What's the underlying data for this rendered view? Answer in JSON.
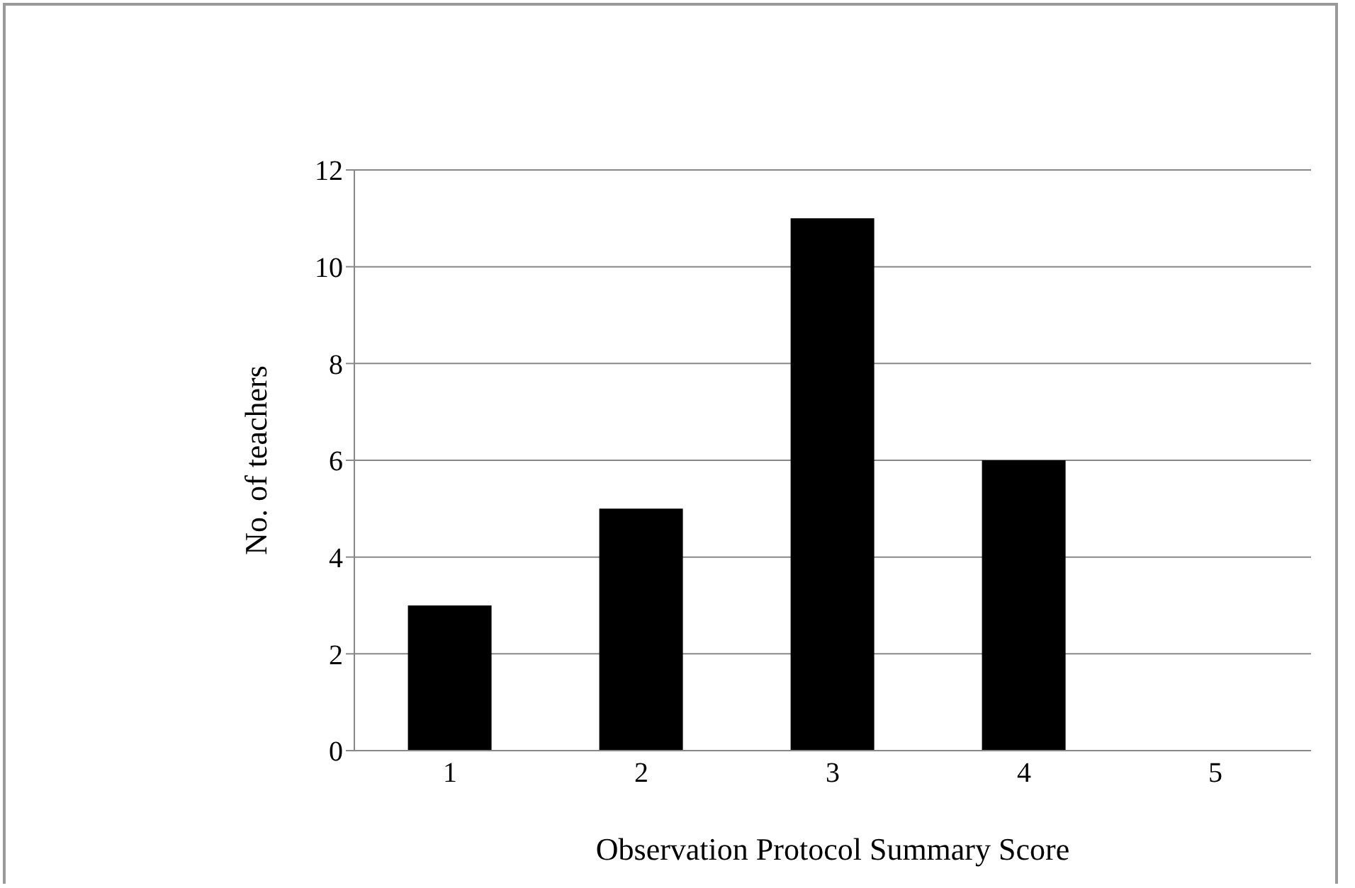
{
  "chart_data": {
    "type": "bar",
    "xlabel": "Observation Protocol Summary Score",
    "ylabel": "No. of teachers",
    "categories": [
      "1",
      "2",
      "3",
      "4",
      "5"
    ],
    "values": [
      3,
      5,
      11,
      6,
      0
    ],
    "color": "#000000",
    "ylim": [
      0,
      12
    ],
    "yticks": [
      0,
      2,
      4,
      6,
      8,
      10,
      12
    ],
    "grid": "y"
  }
}
